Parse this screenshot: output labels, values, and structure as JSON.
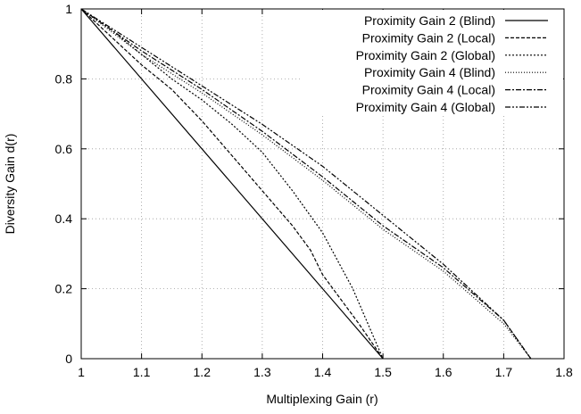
{
  "chart_data": {
    "type": "line",
    "title": "",
    "xlabel": "Multiplexing Gain (r)",
    "ylabel": "Diversity Gain d(r)",
    "xlim": [
      1,
      1.8
    ],
    "ylim": [
      0,
      1
    ],
    "xticks": [
      "1",
      "1.1",
      "1.2",
      "1.3",
      "1.4",
      "1.5",
      "1.6",
      "1.7",
      "1.8"
    ],
    "yticks": [
      "0",
      "0.2",
      "0.4",
      "0.6",
      "0.8",
      "1"
    ],
    "grid": true,
    "legend_position": "top-right",
    "series": [
      {
        "name": "Proximity Gain 2 (Blind)",
        "dash": "",
        "x": [
          1.0,
          1.5
        ],
        "y": [
          1.0,
          0.0
        ]
      },
      {
        "name": "Proximity Gain 2 (Local)",
        "dash": "4,2",
        "x": [
          1.0,
          1.05,
          1.1,
          1.15,
          1.2,
          1.25,
          1.3,
          1.35,
          1.38,
          1.4,
          1.43,
          1.46,
          1.5
        ],
        "y": [
          1.0,
          0.92,
          0.84,
          0.77,
          0.68,
          0.58,
          0.48,
          0.38,
          0.31,
          0.24,
          0.17,
          0.1,
          0.0
        ]
      },
      {
        "name": "Proximity Gain 2 (Global)",
        "dash": "2,2",
        "x": [
          1.0,
          1.05,
          1.1,
          1.15,
          1.2,
          1.25,
          1.3,
          1.35,
          1.4,
          1.45,
          1.5
        ],
        "y": [
          1.0,
          0.94,
          0.87,
          0.8,
          0.74,
          0.67,
          0.59,
          0.48,
          0.36,
          0.2,
          0.0
        ]
      },
      {
        "name": "Proximity Gain 4 (Blind)",
        "dash": "1,2",
        "x": [
          1.0,
          1.1,
          1.2,
          1.3,
          1.4,
          1.5,
          1.6,
          1.7,
          1.745
        ],
        "y": [
          1.0,
          0.87,
          0.76,
          0.64,
          0.51,
          0.37,
          0.25,
          0.1,
          0.0
        ]
      },
      {
        "name": "Proximity Gain 4 (Local)",
        "dash": "6,2,2,2",
        "x": [
          1.0,
          1.1,
          1.2,
          1.3,
          1.4,
          1.5,
          1.6,
          1.7,
          1.745
        ],
        "y": [
          1.0,
          0.88,
          0.77,
          0.65,
          0.52,
          0.38,
          0.26,
          0.11,
          0.0
        ]
      },
      {
        "name": "Proximity Gain 4 (Global)",
        "dash": "6,2,2,2,2,2",
        "x": [
          1.0,
          1.1,
          1.2,
          1.3,
          1.4,
          1.5,
          1.6,
          1.7,
          1.745
        ],
        "y": [
          1.0,
          0.89,
          0.78,
          0.67,
          0.55,
          0.41,
          0.27,
          0.11,
          0.0
        ]
      }
    ]
  }
}
